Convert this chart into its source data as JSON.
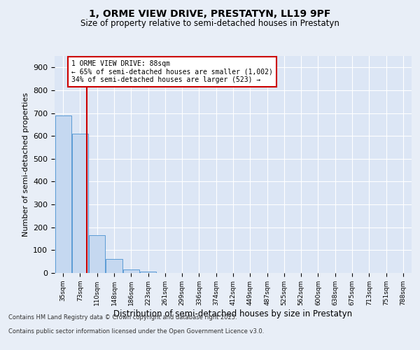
{
  "title_line1": "1, ORME VIEW DRIVE, PRESTATYN, LL19 9PF",
  "title_line2": "Size of property relative to semi-detached houses in Prestatyn",
  "xlabel": "Distribution of semi-detached houses by size in Prestatyn",
  "ylabel": "Number of semi-detached properties",
  "categories": [
    "35sqm",
    "73sqm",
    "110sqm",
    "148sqm",
    "186sqm",
    "223sqm",
    "261sqm",
    "299sqm",
    "336sqm",
    "374sqm",
    "412sqm",
    "449sqm",
    "487sqm",
    "525sqm",
    "562sqm",
    "600sqm",
    "638sqm",
    "675sqm",
    "713sqm",
    "751sqm",
    "788sqm"
  ],
  "values": [
    690,
    610,
    165,
    60,
    15,
    5,
    0,
    0,
    0,
    0,
    0,
    0,
    0,
    0,
    0,
    0,
    0,
    0,
    0,
    0,
    0
  ],
  "bar_color": "#c5d8f0",
  "bar_edge_color": "#5b9bd5",
  "vline_x": 1.38,
  "vline_color": "#cc0000",
  "ylim": [
    0,
    950
  ],
  "yticks": [
    0,
    100,
    200,
    300,
    400,
    500,
    600,
    700,
    800,
    900
  ],
  "annotation_title": "1 ORME VIEW DRIVE: 88sqm",
  "annotation_line2": "← 65% of semi-detached houses are smaller (1,002)",
  "annotation_line3": "34% of semi-detached houses are larger (523) →",
  "annotation_box_color": "#cc0000",
  "footer_line1": "Contains HM Land Registry data © Crown copyright and database right 2025.",
  "footer_line2": "Contains public sector information licensed under the Open Government Licence v3.0.",
  "bg_color": "#e8eef7",
  "plot_bg_color": "#dce6f5",
  "grid_color": "#ffffff",
  "fig_width": 6.0,
  "fig_height": 5.0,
  "dpi": 100
}
